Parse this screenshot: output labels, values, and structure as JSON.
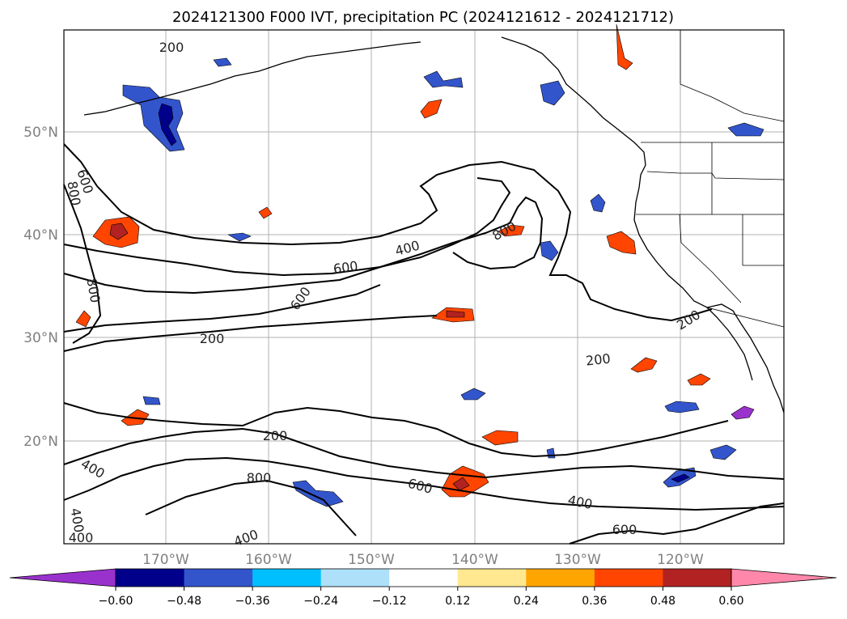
{
  "title": "2024121300 F000 IVT, precipitation PC (2024121612 - 2024121712)",
  "map": {
    "lat_labels": [
      "50°N",
      "40°N",
      "30°N",
      "20°N"
    ],
    "lon_labels": [
      "170°W",
      "160°W",
      "150°W",
      "140°W",
      "130°W",
      "120°W"
    ],
    "ivt_contour_labels": [
      "200",
      "600",
      "800",
      "800",
      "400",
      "600",
      "800",
      "600",
      "200",
      "200",
      "200",
      "200",
      "400",
      "800",
      "600",
      "400",
      "600",
      "400",
      "400",
      "400"
    ]
  },
  "colorbar": {
    "tick_labels": [
      "−0.60",
      "−0.48",
      "−0.36",
      "−0.24",
      "−0.12",
      "0.12",
      "0.24",
      "0.36",
      "0.48",
      "0.60"
    ],
    "colors": [
      "#9932cc",
      "#00008b",
      "#3355cc",
      "#00bfff",
      "#aee0fa",
      "#ffffff",
      "#ffe890",
      "#ffa500",
      "#ff4500",
      "#b22222",
      "#ff88aa"
    ]
  }
}
